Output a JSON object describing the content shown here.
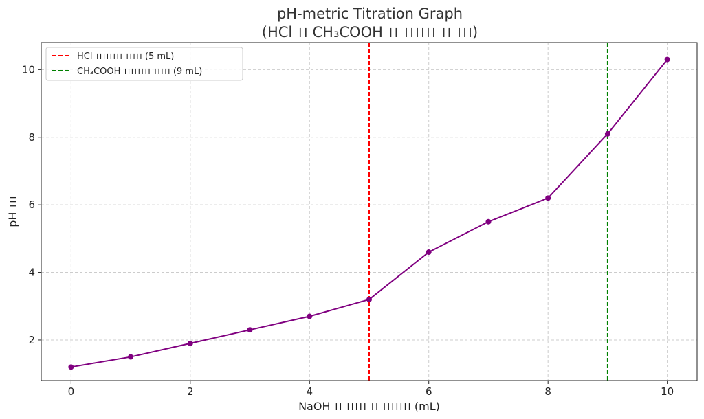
{
  "chart_data": {
    "type": "line",
    "title": "pH-metric Titration Graph",
    "subtitle": "(HCl ।। CH₃COOH ।। ।।।।।। ।। ।।।)",
    "xlabel": "NaOH ।। ।।।।। ।। ।।।।।।। (mL)",
    "ylabel": "pH ।।।",
    "xlim": [
      -0.5,
      10.5
    ],
    "ylim": [
      0.8,
      10.8
    ],
    "xticks": [
      0,
      2,
      4,
      6,
      8,
      10
    ],
    "yticks": [
      2,
      4,
      6,
      8,
      10
    ],
    "grid": true,
    "legend_position": "top-left",
    "series": [
      {
        "name": "pH",
        "color": "#800080",
        "x": [
          0,
          1,
          2,
          3,
          4,
          5,
          6,
          7,
          8,
          9,
          10
        ],
        "y": [
          1.2,
          1.5,
          1.9,
          2.3,
          2.7,
          3.2,
          4.6,
          5.5,
          6.2,
          8.1,
          10.3
        ]
      }
    ],
    "vlines": [
      {
        "x": 5,
        "label": "HCl ।।।।।।।। ।।।।। (5 mL)",
        "color": "#ff0000"
      },
      {
        "x": 9,
        "label": "CH₃COOH ।।।।।।।। ।।।।। (9 mL)",
        "color": "#008000"
      }
    ]
  }
}
